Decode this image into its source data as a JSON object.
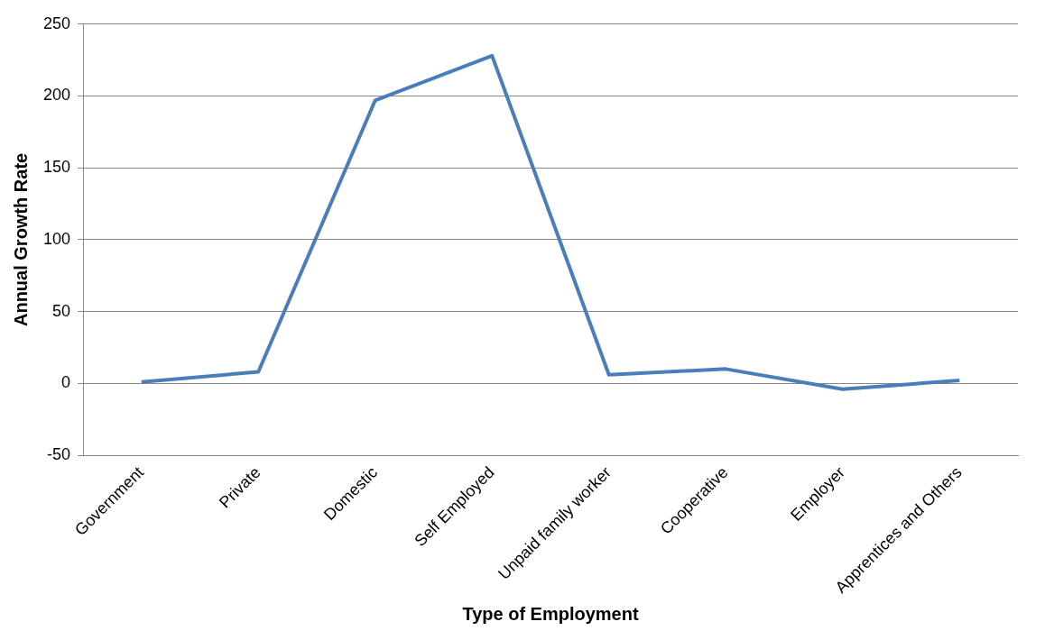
{
  "chart_data": {
    "type": "line",
    "xlabel": "Type of Employment",
    "ylabel": "Annual Growth Rate",
    "categories": [
      "Government",
      "Private",
      "Domestic",
      "Self Employed",
      "Unpaid family worker",
      "Cooperative",
      "Employer",
      "Apprentices and Others"
    ],
    "series": [
      {
        "color": "#4a7ebb",
        "values": [
          1,
          8,
          197,
          228,
          6,
          10,
          -4,
          2
        ]
      }
    ],
    "ylim": [
      -50,
      250
    ],
    "yticks": [
      -50,
      0,
      50,
      100,
      150,
      200,
      250
    ],
    "grid": "y",
    "legend": false,
    "marker": "none",
    "line_style": "solid"
  }
}
